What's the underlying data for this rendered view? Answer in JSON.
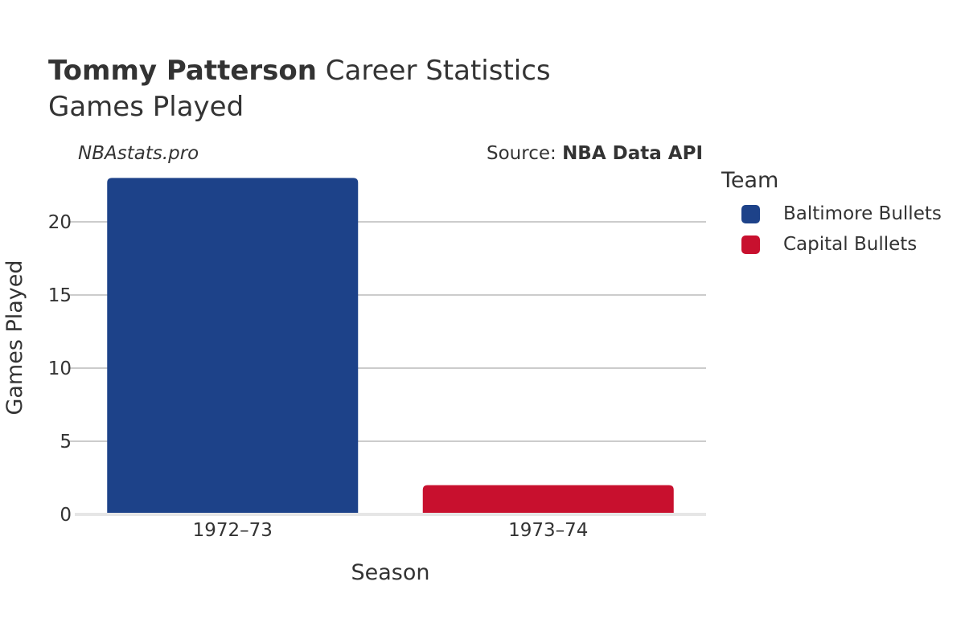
{
  "header": {
    "player_name": "Tommy Patterson",
    "title_suffix": "Career Statistics",
    "subtitle": "Games Played"
  },
  "watermark": "NBAstats.pro",
  "source": {
    "prefix": "Source:",
    "name": "NBA Data API"
  },
  "legend": {
    "title": "Team",
    "items": [
      {
        "label": "Baltimore Bullets",
        "color": "#1D4289"
      },
      {
        "label": "Capital Bullets",
        "color": "#C8102E"
      }
    ]
  },
  "chart_data": {
    "type": "bar",
    "categories": [
      "1972–73",
      "1973–74"
    ],
    "values": [
      23,
      2
    ],
    "teams": [
      "Baltimore Bullets",
      "Capital Bullets"
    ],
    "colors": [
      "#1D4289",
      "#C8102E"
    ],
    "xlabel": "Season",
    "ylabel": "Games Played",
    "yticks": [
      0,
      5,
      10,
      15,
      20
    ],
    "ylim": [
      0,
      23
    ],
    "grid": true,
    "legend_position": "right"
  }
}
